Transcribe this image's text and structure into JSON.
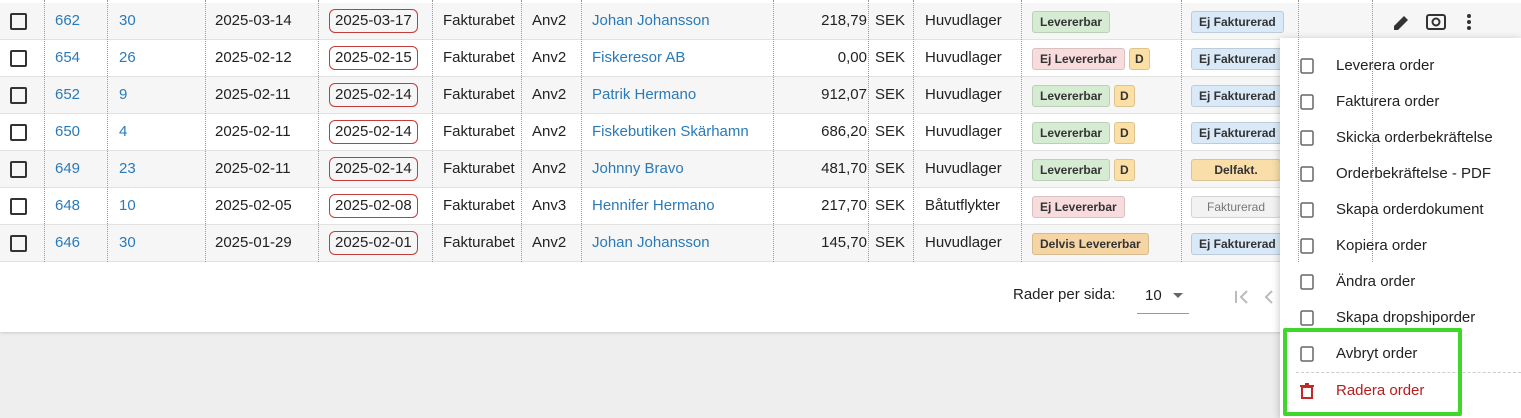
{
  "table": {
    "rows": [
      {
        "id": "662",
        "ref": "30",
        "date": "2025-03-14",
        "due": "2025-03-17",
        "payment": "Fakturabet",
        "user": "Anv2",
        "customer": "Johan Johansson",
        "amount": "218,79",
        "currency": "SEK",
        "warehouse": "Huvudlager",
        "delivery": {
          "label": "Levererbar",
          "color": "#d5ecd3"
        },
        "invoice": {
          "label": "Ej Fakturerad",
          "color": "#d9e9f8"
        }
      },
      {
        "id": "654",
        "ref": "26",
        "date": "2025-02-12",
        "due": "2025-02-15",
        "payment": "Fakturabet",
        "user": "Anv2",
        "customer": "Fiskeresor AB",
        "amount": "0,00",
        "currency": "SEK",
        "warehouse": "Huvudlager",
        "delivery": {
          "label": "Ej Levererbar",
          "color": "#f8dcdd"
        },
        "flag": "D",
        "invoice": {
          "label": "Ej Fakturerad",
          "color": "#d9e9f8"
        }
      },
      {
        "id": "652",
        "ref": "9",
        "date": "2025-02-11",
        "due": "2025-02-14",
        "payment": "Fakturabet",
        "user": "Anv2",
        "customer": "Patrik Hermano",
        "amount": "912,07",
        "currency": "SEK",
        "warehouse": "Huvudlager",
        "delivery": {
          "label": "Levererbar",
          "color": "#d5ecd3"
        },
        "flag": "D",
        "invoice": {
          "label": "Ej Fakturerad",
          "color": "#d9e9f8"
        }
      },
      {
        "id": "650",
        "ref": "4",
        "date": "2025-02-11",
        "due": "2025-02-14",
        "payment": "Fakturabet",
        "user": "Anv2",
        "customer": "Fiskebutiken Skärhamn",
        "amount": "686,20",
        "currency": "SEK",
        "warehouse": "Huvudlager",
        "delivery": {
          "label": "Levererbar",
          "color": "#d5ecd3"
        },
        "flag": "D",
        "invoice": {
          "label": "Ej Fakturerad",
          "color": "#d9e9f8"
        }
      },
      {
        "id": "649",
        "ref": "23",
        "date": "2025-02-11",
        "due": "2025-02-14",
        "payment": "Fakturabet",
        "user": "Anv2",
        "customer": "Johnny Bravo",
        "amount": "481,70",
        "currency": "SEK",
        "warehouse": "Huvudlager",
        "delivery": {
          "label": "Levererbar",
          "color": "#d5ecd3"
        },
        "flag": "D",
        "invoice": {
          "label": "Delfakt.",
          "color": "#f9deaa"
        }
      },
      {
        "id": "648",
        "ref": "10",
        "date": "2025-02-05",
        "due": "2025-02-08",
        "payment": "Fakturabet",
        "user": "Anv3",
        "customer": "Hennifer Hermano",
        "amount": "217,70",
        "currency": "SEK",
        "warehouse": "Båtutflykter",
        "delivery": {
          "label": "Ej Levererbar",
          "color": "#f8dcdd"
        },
        "invoice": {
          "label": "Fakturerad",
          "color": "#f2f2f2"
        }
      },
      {
        "id": "646",
        "ref": "30",
        "date": "2025-01-29",
        "due": "2025-02-01",
        "payment": "Fakturabet",
        "user": "Anv2",
        "customer": "Johan Johansson",
        "amount": "145,70",
        "currency": "SEK",
        "warehouse": "Huvudlager",
        "delivery": {
          "label": "Delvis Levererbar",
          "color": "#f5d5a4"
        },
        "invoice": {
          "label": "Ej Fakturerad",
          "color": "#d9e9f8"
        }
      }
    ]
  },
  "pagination": {
    "label": "Rader per sida:",
    "value": "10"
  },
  "menu": {
    "items": [
      "Leverera order",
      "Fakturera order",
      "Skicka orderbekräftelse",
      "Orderbekräftelse - PDF",
      "Skapa orderdokument",
      "Kopiera order",
      "Ändra order",
      "Skapa dropshiporder",
      "Avbryt order",
      "Radera order"
    ]
  }
}
